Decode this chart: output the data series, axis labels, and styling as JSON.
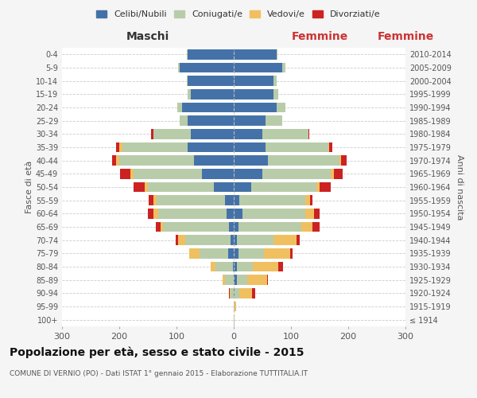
{
  "age_groups": [
    "100+",
    "95-99",
    "90-94",
    "85-89",
    "80-84",
    "75-79",
    "70-74",
    "65-69",
    "60-64",
    "55-59",
    "50-54",
    "45-49",
    "40-44",
    "35-39",
    "30-34",
    "25-29",
    "20-24",
    "15-19",
    "10-14",
    "5-9",
    "0-4"
  ],
  "birth_years": [
    "≤ 1914",
    "1915-1919",
    "1920-1924",
    "1925-1929",
    "1930-1934",
    "1935-1939",
    "1940-1944",
    "1945-1949",
    "1950-1954",
    "1955-1959",
    "1960-1964",
    "1965-1969",
    "1970-1974",
    "1975-1979",
    "1980-1984",
    "1985-1989",
    "1990-1994",
    "1995-1999",
    "2000-2004",
    "2005-2009",
    "2010-2014"
  ],
  "males": {
    "celibi": [
      0,
      0,
      0,
      0,
      2,
      10,
      5,
      8,
      12,
      15,
      35,
      55,
      70,
      80,
      75,
      80,
      90,
      75,
      80,
      95,
      80
    ],
    "coniugati": [
      0,
      0,
      5,
      15,
      30,
      50,
      80,
      115,
      120,
      120,
      115,
      120,
      130,
      115,
      65,
      15,
      8,
      5,
      2,
      2,
      2
    ],
    "vedovi": [
      0,
      0,
      2,
      5,
      8,
      18,
      12,
      5,
      8,
      5,
      5,
      5,
      5,
      5,
      0,
      0,
      0,
      0,
      0,
      0,
      0
    ],
    "divorziati": [
      0,
      0,
      2,
      0,
      0,
      0,
      5,
      8,
      10,
      8,
      20,
      18,
      8,
      5,
      5,
      0,
      0,
      0,
      0,
      0,
      0
    ]
  },
  "females": {
    "nubili": [
      0,
      0,
      2,
      5,
      5,
      8,
      5,
      8,
      15,
      10,
      30,
      50,
      60,
      55,
      50,
      55,
      75,
      70,
      70,
      85,
      75
    ],
    "coniugate": [
      0,
      2,
      8,
      18,
      28,
      45,
      65,
      110,
      110,
      115,
      115,
      120,
      125,
      110,
      80,
      30,
      15,
      8,
      5,
      5,
      2
    ],
    "vedove": [
      2,
      2,
      22,
      35,
      45,
      45,
      40,
      20,
      15,
      8,
      5,
      5,
      2,
      2,
      0,
      0,
      0,
      0,
      0,
      0,
      0
    ],
    "divorziate": [
      0,
      0,
      5,
      2,
      8,
      5,
      5,
      12,
      10,
      5,
      20,
      15,
      10,
      5,
      2,
      0,
      0,
      0,
      0,
      0,
      0
    ]
  },
  "color_celibi": "#4472a8",
  "color_coniugati": "#b8ccaa",
  "color_vedovi": "#f0c060",
  "color_divorziati": "#cc2222",
  "xlim": 300,
  "title": "Popolazione per età, sesso e stato civile - 2015",
  "subtitle": "COMUNE DI VERNIO (PO) - Dati ISTAT 1° gennaio 2015 - Elaborazione TUTTITALIA.IT",
  "ylabel_left": "Fasce di età",
  "ylabel_right": "Anni di nascita",
  "xlabel_left": "Maschi",
  "xlabel_right": "Femmine",
  "bg_color": "#f5f5f5",
  "plot_bg": "#ffffff"
}
